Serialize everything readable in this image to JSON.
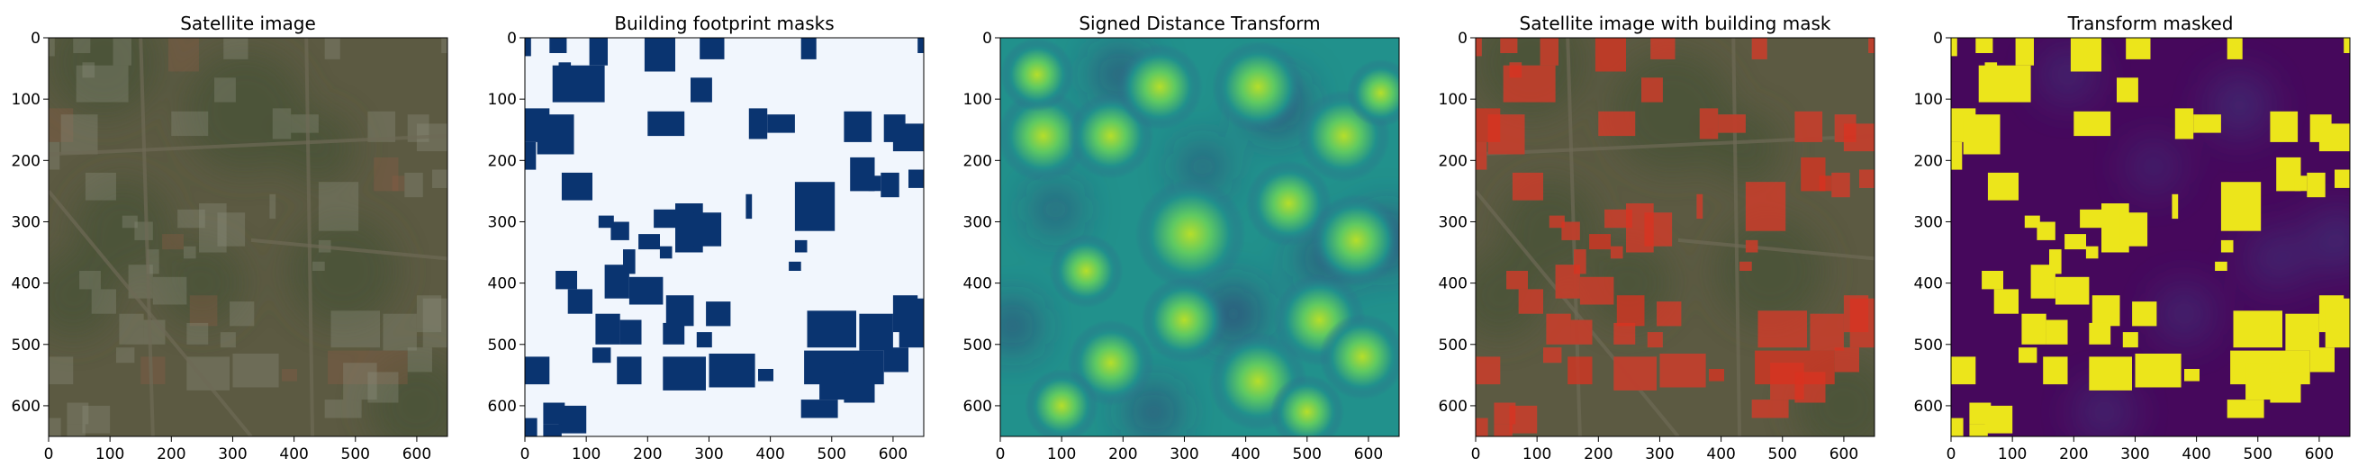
{
  "figure": {
    "background": "#ffffff"
  },
  "chart_data": [
    {
      "type": "heatmap",
      "title": "Satellite image",
      "content": "satellite-rgb",
      "xlim": [
        0,
        650
      ],
      "ylim": [
        650,
        0
      ],
      "xticks": [
        0,
        100,
        200,
        300,
        400,
        500,
        600
      ],
      "yticks": [
        0,
        100,
        200,
        300,
        400,
        500,
        600
      ],
      "colors": {
        "base": "#5c5a42",
        "vegetation": "#465234",
        "roof_light": "#8b8f7d",
        "roof_warm": "#8b5b44"
      }
    },
    {
      "type": "heatmap",
      "title": "Building footprint masks",
      "content": "binary-mask",
      "colormap": "Blues",
      "xlim": [
        0,
        650
      ],
      "ylim": [
        650,
        0
      ],
      "xticks": [
        0,
        100,
        200,
        300,
        400,
        500,
        600
      ],
      "yticks": [
        0,
        100,
        200,
        300,
        400,
        500,
        600
      ],
      "colors": {
        "background": "#f1f6fd",
        "building": "#0a3470"
      }
    },
    {
      "type": "heatmap",
      "title": "Signed Distance Transform",
      "content": "distance-field",
      "colormap": "viridis",
      "xlim": [
        0,
        650
      ],
      "ylim": [
        650,
        0
      ],
      "xticks": [
        0,
        100,
        200,
        300,
        400,
        500,
        600
      ],
      "yticks": [
        0,
        100,
        200,
        300,
        400,
        500,
        600
      ],
      "colors": {
        "low": "#440154",
        "mid": "#21918c",
        "high": "#b5de2b"
      }
    },
    {
      "type": "heatmap",
      "title": "Satellite image with building mask",
      "content": "satellite-rgb-with-mask-overlay",
      "xlim": [
        0,
        650
      ],
      "ylim": [
        650,
        0
      ],
      "xticks": [
        0,
        100,
        200,
        300,
        400,
        500,
        600
      ],
      "yticks": [
        0,
        100,
        200,
        300,
        400,
        500,
        600
      ],
      "colors": {
        "overlay": "#d9301f"
      }
    },
    {
      "type": "heatmap",
      "title": "Transform masked",
      "content": "distance-field-with-buildings",
      "colormap": "viridis",
      "xlim": [
        0,
        650
      ],
      "ylim": [
        650,
        0
      ],
      "xticks": [
        0,
        100,
        200,
        300,
        400,
        500,
        600
      ],
      "yticks": [
        0,
        100,
        200,
        300,
        400,
        500,
        600
      ],
      "colors": {
        "background": "#46085c",
        "building": "#ece51b"
      }
    }
  ]
}
